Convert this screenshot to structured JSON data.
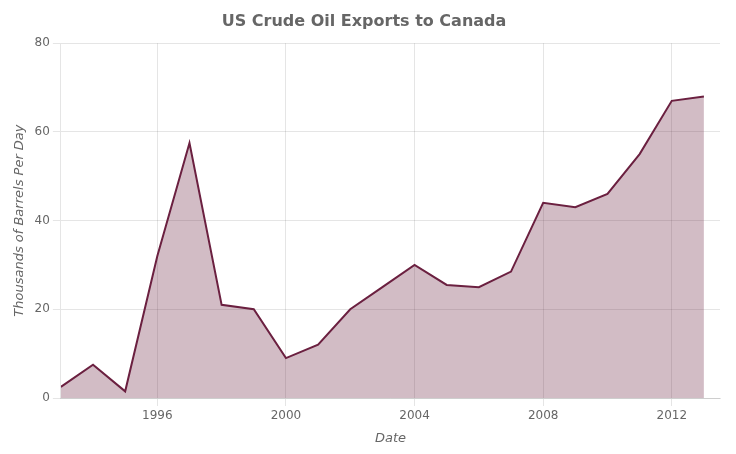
{
  "chart_data": {
    "type": "area",
    "title": "US Crude Oil Exports to Canada",
    "xlabel": "Date",
    "ylabel": "Thousands of Barrels Per Day",
    "x": [
      1993,
      1994,
      1995,
      1996,
      1997,
      1998,
      1999,
      2000,
      2001,
      2002,
      2003,
      2004,
      2005,
      2006,
      2007,
      2008,
      2009,
      2010,
      2011,
      2012,
      2013
    ],
    "values": [
      2.5,
      7.5,
      1.5,
      32,
      57.5,
      21,
      20,
      9,
      12,
      20,
      25,
      30,
      25.5,
      25,
      28.5,
      44,
      43,
      46,
      55,
      67,
      68
    ],
    "color": "#6B2040",
    "xlim": [
      1993,
      2013.5
    ],
    "xticks": [
      1996,
      2000,
      2004,
      2008,
      2012
    ],
    "ylim": [
      0,
      80
    ],
    "yticks": [
      0,
      20,
      40,
      60,
      80
    ],
    "grid": true
  }
}
